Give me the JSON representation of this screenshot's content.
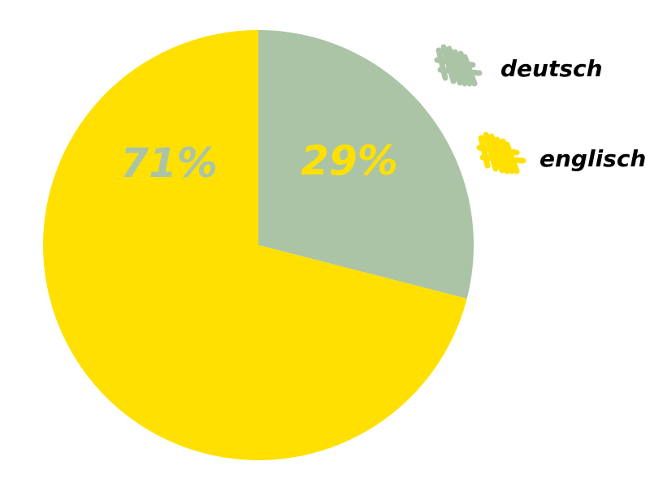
{
  "chart_data": {
    "type": "pie",
    "title": "",
    "slices": [
      {
        "name": "deutsch",
        "value": 29,
        "label": "29%",
        "color": "#abc4a6",
        "label_color": "#ffe000"
      },
      {
        "name": "englisch",
        "value": 71,
        "label": "71%",
        "color": "#ffe000",
        "label_color": "#abc4a6"
      }
    ],
    "start_at": "12 o'clock",
    "direction": "clockwise",
    "legend": {
      "placement": "right",
      "entries": [
        "deutsch",
        "englisch"
      ],
      "marker_style": "scribble"
    }
  }
}
